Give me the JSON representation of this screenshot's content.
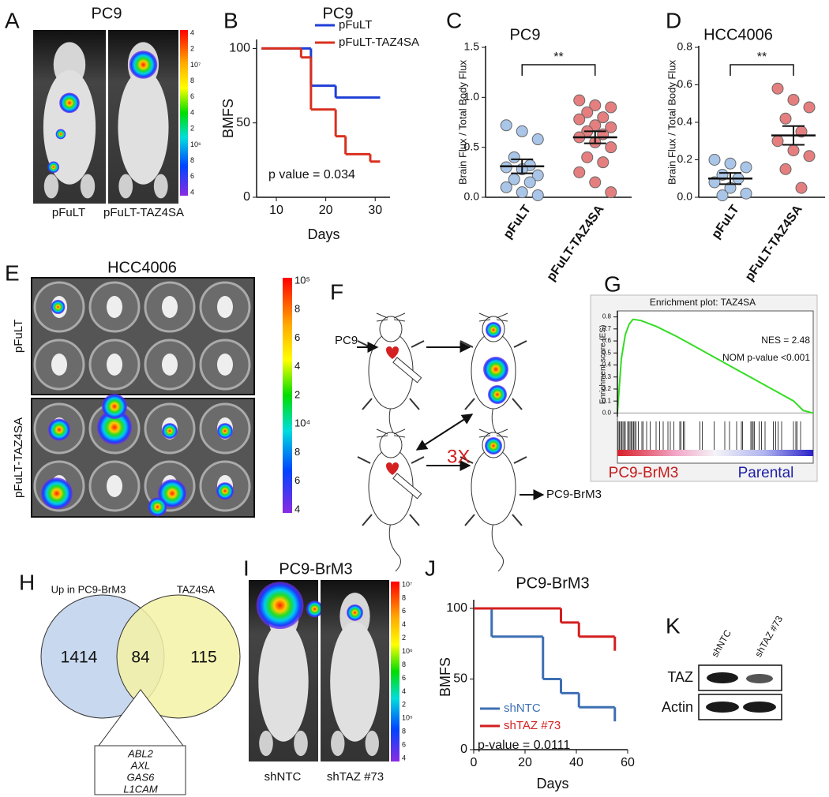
{
  "panel_a": {
    "label": "A",
    "title": "PC9",
    "images": [
      "pFuLT",
      "pFuLT-TAZ4SA"
    ],
    "colorbar": [
      "4",
      "2",
      "10⁷",
      "8",
      "6",
      "4",
      "2",
      "10⁶",
      "8",
      "6",
      "4"
    ]
  },
  "chart_data": [
    {
      "type": "step",
      "label": "B",
      "title": "PC9",
      "xlabel": "Days",
      "ylabel": "BMFS",
      "xlim": [
        6,
        33
      ],
      "xticks": [
        10,
        20,
        30
      ],
      "ylim": [
        0,
        105
      ],
      "yticks": [
        0,
        50,
        100
      ],
      "legend": "upper right",
      "annotation": "p value = 0.034",
      "series": [
        {
          "name": "pFuLT",
          "color": "#1f3fd6",
          "x": [
            7,
            17,
            22,
            31
          ],
          "values": [
            100,
            75,
            67,
            67
          ]
        },
        {
          "name": "pFuLT-TAZ4SA",
          "color": "#d9301e",
          "x": [
            7,
            15,
            17,
            22,
            24,
            29,
            31
          ],
          "values": [
            100,
            94,
            59,
            41,
            29,
            24,
            24
          ]
        }
      ]
    },
    {
      "type": "scatter",
      "label": "C",
      "title": "PC9",
      "ylabel": "Brain Flux / Total Body Flux",
      "categories": [
        "pFuLT",
        "pFuLT-TAZ4SA"
      ],
      "ylim": [
        0,
        1.5
      ],
      "yticks": [
        {
          "value": 0,
          "label": "0.0"
        },
        0.5,
        {
          "value": 1,
          "label": "1.0"
        },
        1.5
      ],
      "significance": "**",
      "groups": [
        {
          "color": "#a9c6e8",
          "values": [
            0.72,
            0.66,
            0.58,
            0.4,
            0.32,
            0.3,
            0.28,
            0.22,
            0.18,
            0.15,
            0.1,
            0.05,
            0.02
          ],
          "mean": 0.31,
          "sem": 0.07
        },
        {
          "color": "#e57f7f",
          "values": [
            0.97,
            0.92,
            0.9,
            0.85,
            0.8,
            0.78,
            0.72,
            0.7,
            0.66,
            0.63,
            0.6,
            0.55,
            0.5,
            0.4,
            0.35,
            0.25,
            0.15,
            0.05
          ],
          "mean": 0.6,
          "sem": 0.06
        }
      ]
    },
    {
      "type": "scatter",
      "label": "D",
      "title": "HCC4006",
      "ylabel": "Brain Flux / Total Body Flux",
      "categories": [
        "pFuLT",
        "pFuLT-TAZ4SA"
      ],
      "ylim": [
        0,
        0.8
      ],
      "yticks": [
        {
          "value": 0,
          "label": "0.0"
        },
        0.2,
        0.4,
        0.6,
        0.8
      ],
      "significance": "**",
      "groups": [
        {
          "color": "#a9c6e8",
          "values": [
            0.2,
            0.18,
            0.16,
            0.12,
            0.1,
            0.08,
            0.05,
            0.02,
            0.01
          ],
          "mean": 0.1,
          "sem": 0.03
        },
        {
          "color": "#e57f7f",
          "values": [
            0.58,
            0.52,
            0.48,
            0.42,
            0.35,
            0.3,
            0.25,
            0.22,
            0.15,
            0.05
          ],
          "mean": 0.33,
          "sem": 0.05
        }
      ]
    },
    {
      "type": "line",
      "label": "G",
      "title": "Enrichment plot: TAZ4SA",
      "ylabel": "Enrichment score (ES)",
      "ylim": [
        -0.03,
        0.85
      ],
      "yticks": [
        {
          "value": 0,
          "label": "0.0"
        },
        0.1,
        0.2,
        0.3,
        0.4,
        0.5,
        0.6,
        0.7,
        0.8
      ],
      "annotations": [
        "NES = 2.48",
        "NOM p-value <0.001"
      ],
      "phenotypes": [
        "PC9-BrM3",
        "Parental"
      ],
      "color": "#33dd22",
      "x": [
        0,
        0.02,
        0.04,
        0.06,
        0.08,
        0.12,
        0.2,
        0.3,
        0.4,
        0.5,
        0.6,
        0.7,
        0.8,
        0.9,
        0.95,
        1
      ],
      "values": [
        0,
        0.45,
        0.65,
        0.74,
        0.78,
        0.77,
        0.72,
        0.64,
        0.55,
        0.46,
        0.37,
        0.28,
        0.19,
        0.1,
        0.02,
        0
      ]
    },
    {
      "type": "step",
      "label": "J",
      "title": "PC9-BrM3",
      "xlabel": "Days",
      "ylabel": "BMFS",
      "xlim": [
        0,
        60
      ],
      "xticks": [
        0,
        20,
        40,
        60
      ],
      "ylim": [
        0,
        105
      ],
      "yticks": [
        0,
        50,
        100
      ],
      "legend": "lower left",
      "annotation": "p-value = 0.0111",
      "series": [
        {
          "name": "shNTC",
          "color": "#3d6fb3",
          "x": [
            0,
            7,
            27,
            34,
            41,
            55
          ],
          "values": [
            100,
            80,
            50,
            40,
            30,
            20
          ]
        },
        {
          "name": "shTAZ #73",
          "color": "#d41f1f",
          "x": [
            0,
            34,
            41,
            55
          ],
          "values": [
            100,
            90,
            80,
            70
          ]
        }
      ]
    }
  ],
  "panel_e": {
    "label": "E",
    "title": "HCC4006",
    "rows": [
      "pFuLT",
      "pFuLT-TAZ4SA"
    ],
    "colorbar": [
      "10⁵",
      "8",
      "6",
      "4",
      "2",
      "10⁴",
      "8",
      "6",
      "4"
    ]
  },
  "panel_f": {
    "label": "F",
    "start": "PC9",
    "repeat": "3X",
    "result": "PC9-BrM3"
  },
  "panel_h": {
    "label": "H",
    "sets": [
      "Up in PC9-BrM3",
      "TAZ4SA"
    ],
    "counts": [
      1414,
      84,
      115
    ],
    "genes": [
      "ABL2",
      "AXL",
      "GAS6",
      "L1CAM"
    ]
  },
  "panel_i": {
    "label": "I",
    "title": "PC9-BrM3",
    "images": [
      "shNTC",
      "shTAZ #73"
    ],
    "colorbar": [
      "10⁷",
      "8",
      "6",
      "4",
      "2",
      "10⁶",
      "8",
      "6",
      "4",
      "2",
      "10⁵",
      "8",
      "6",
      "4"
    ]
  },
  "panel_k": {
    "label": "K",
    "lanes": [
      "shNTC",
      "shTAZ #73"
    ],
    "proteins": [
      "TAZ",
      "Actin"
    ]
  }
}
